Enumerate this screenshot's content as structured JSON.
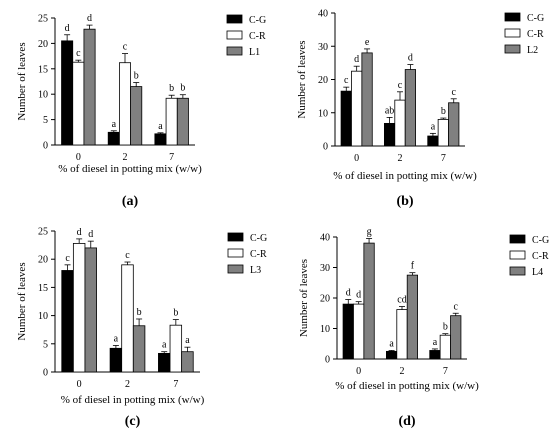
{
  "chart_data": [
    {
      "type": "bar",
      "panel_label": "(a)",
      "xlabel": "% of diesel in potting mix (w/w)",
      "ylabel": "Number of leaves",
      "categories": [
        "0",
        "2",
        "7"
      ],
      "ylim": [
        0,
        25
      ],
      "yticks": [
        "0",
        "5",
        "10",
        "15",
        "20",
        "25"
      ],
      "series": [
        {
          "name": "C-G",
          "values": [
            20.5,
            2.5,
            2.2
          ],
          "errors": [
            1.2,
            0.3,
            0.2
          ],
          "letters": [
            "d",
            "a",
            "a"
          ]
        },
        {
          "name": "C-R",
          "values": [
            16.3,
            16.2,
            9.2
          ],
          "errors": [
            0.4,
            1.8,
            0.6
          ],
          "letters": [
            "c",
            "c",
            "b"
          ]
        },
        {
          "name": "L1",
          "values": [
            22.8,
            11.5,
            9.2
          ],
          "errors": [
            0.8,
            0.8,
            0.7
          ],
          "letters": [
            "d",
            "b",
            "b"
          ]
        }
      ]
    },
    {
      "type": "bar",
      "panel_label": "(b)",
      "xlabel": "% of diesel in potting mix (w/w)",
      "ylabel": "Number of leaves",
      "categories": [
        "0",
        "2",
        "7"
      ],
      "ylim": [
        0,
        40
      ],
      "yticks": [
        "0",
        "10",
        "20",
        "30",
        "40"
      ],
      "series": [
        {
          "name": "C-G",
          "values": [
            16.5,
            6.8,
            3.0
          ],
          "errors": [
            1.2,
            1.8,
            0.8
          ],
          "letters": [
            "c",
            "ab",
            "a"
          ]
        },
        {
          "name": "C-R",
          "values": [
            22.5,
            13.8,
            8.0
          ],
          "errors": [
            1.5,
            2.5,
            0.4
          ],
          "letters": [
            "d",
            "c",
            "b"
          ]
        },
        {
          "name": "L2",
          "values": [
            28.0,
            23.0,
            13.0
          ],
          "errors": [
            1.2,
            1.5,
            1.2
          ],
          "letters": [
            "e",
            "d",
            "c"
          ]
        }
      ]
    },
    {
      "type": "bar",
      "panel_label": "(c)",
      "xlabel": "% of diesel in potting mix (w/w)",
      "ylabel": "Number of leaves",
      "categories": [
        "0",
        "2",
        "7"
      ],
      "ylim": [
        0,
        25
      ],
      "yticks": [
        "0",
        "5",
        "10",
        "15",
        "20",
        "25"
      ],
      "series": [
        {
          "name": "C-G",
          "values": [
            18.0,
            4.2,
            3.3
          ],
          "errors": [
            1.0,
            0.5,
            0.3
          ],
          "letters": [
            "c",
            "a",
            "a"
          ]
        },
        {
          "name": "C-R",
          "values": [
            22.8,
            19.0,
            8.3
          ],
          "errors": [
            0.8,
            0.5,
            1.0
          ],
          "letters": [
            "d",
            "c",
            "b"
          ]
        },
        {
          "name": "L3",
          "values": [
            22.0,
            8.2,
            3.6
          ],
          "errors": [
            1.2,
            1.2,
            0.8
          ],
          "letters": [
            "d",
            "b",
            "a"
          ]
        }
      ]
    },
    {
      "type": "bar",
      "panel_label": "(d)",
      "xlabel": "% of diesel in potting mix (w/w)",
      "ylabel": "Number of leaves",
      "categories": [
        "0",
        "2",
        "7"
      ],
      "ylim": [
        0,
        40
      ],
      "yticks": [
        "0",
        "10",
        "20",
        "30",
        "40"
      ],
      "series": [
        {
          "name": "C-G",
          "values": [
            18.0,
            2.5,
            2.8
          ],
          "errors": [
            1.5,
            0.3,
            0.5
          ],
          "letters": [
            "d",
            "a",
            "a"
          ]
        },
        {
          "name": "C-R",
          "values": [
            18.0,
            16.2,
            7.8
          ],
          "errors": [
            0.8,
            1.0,
            0.5
          ],
          "letters": [
            "d",
            "cd",
            "b"
          ]
        },
        {
          "name": "L4",
          "values": [
            38.0,
            27.5,
            14.2
          ],
          "errors": [
            1.5,
            0.8,
            0.8
          ],
          "letters": [
            "g",
            "f",
            "c"
          ]
        }
      ]
    }
  ],
  "colors": {
    "C-G": "#000000",
    "C-R": "#ffffff",
    "L": "#808080"
  }
}
